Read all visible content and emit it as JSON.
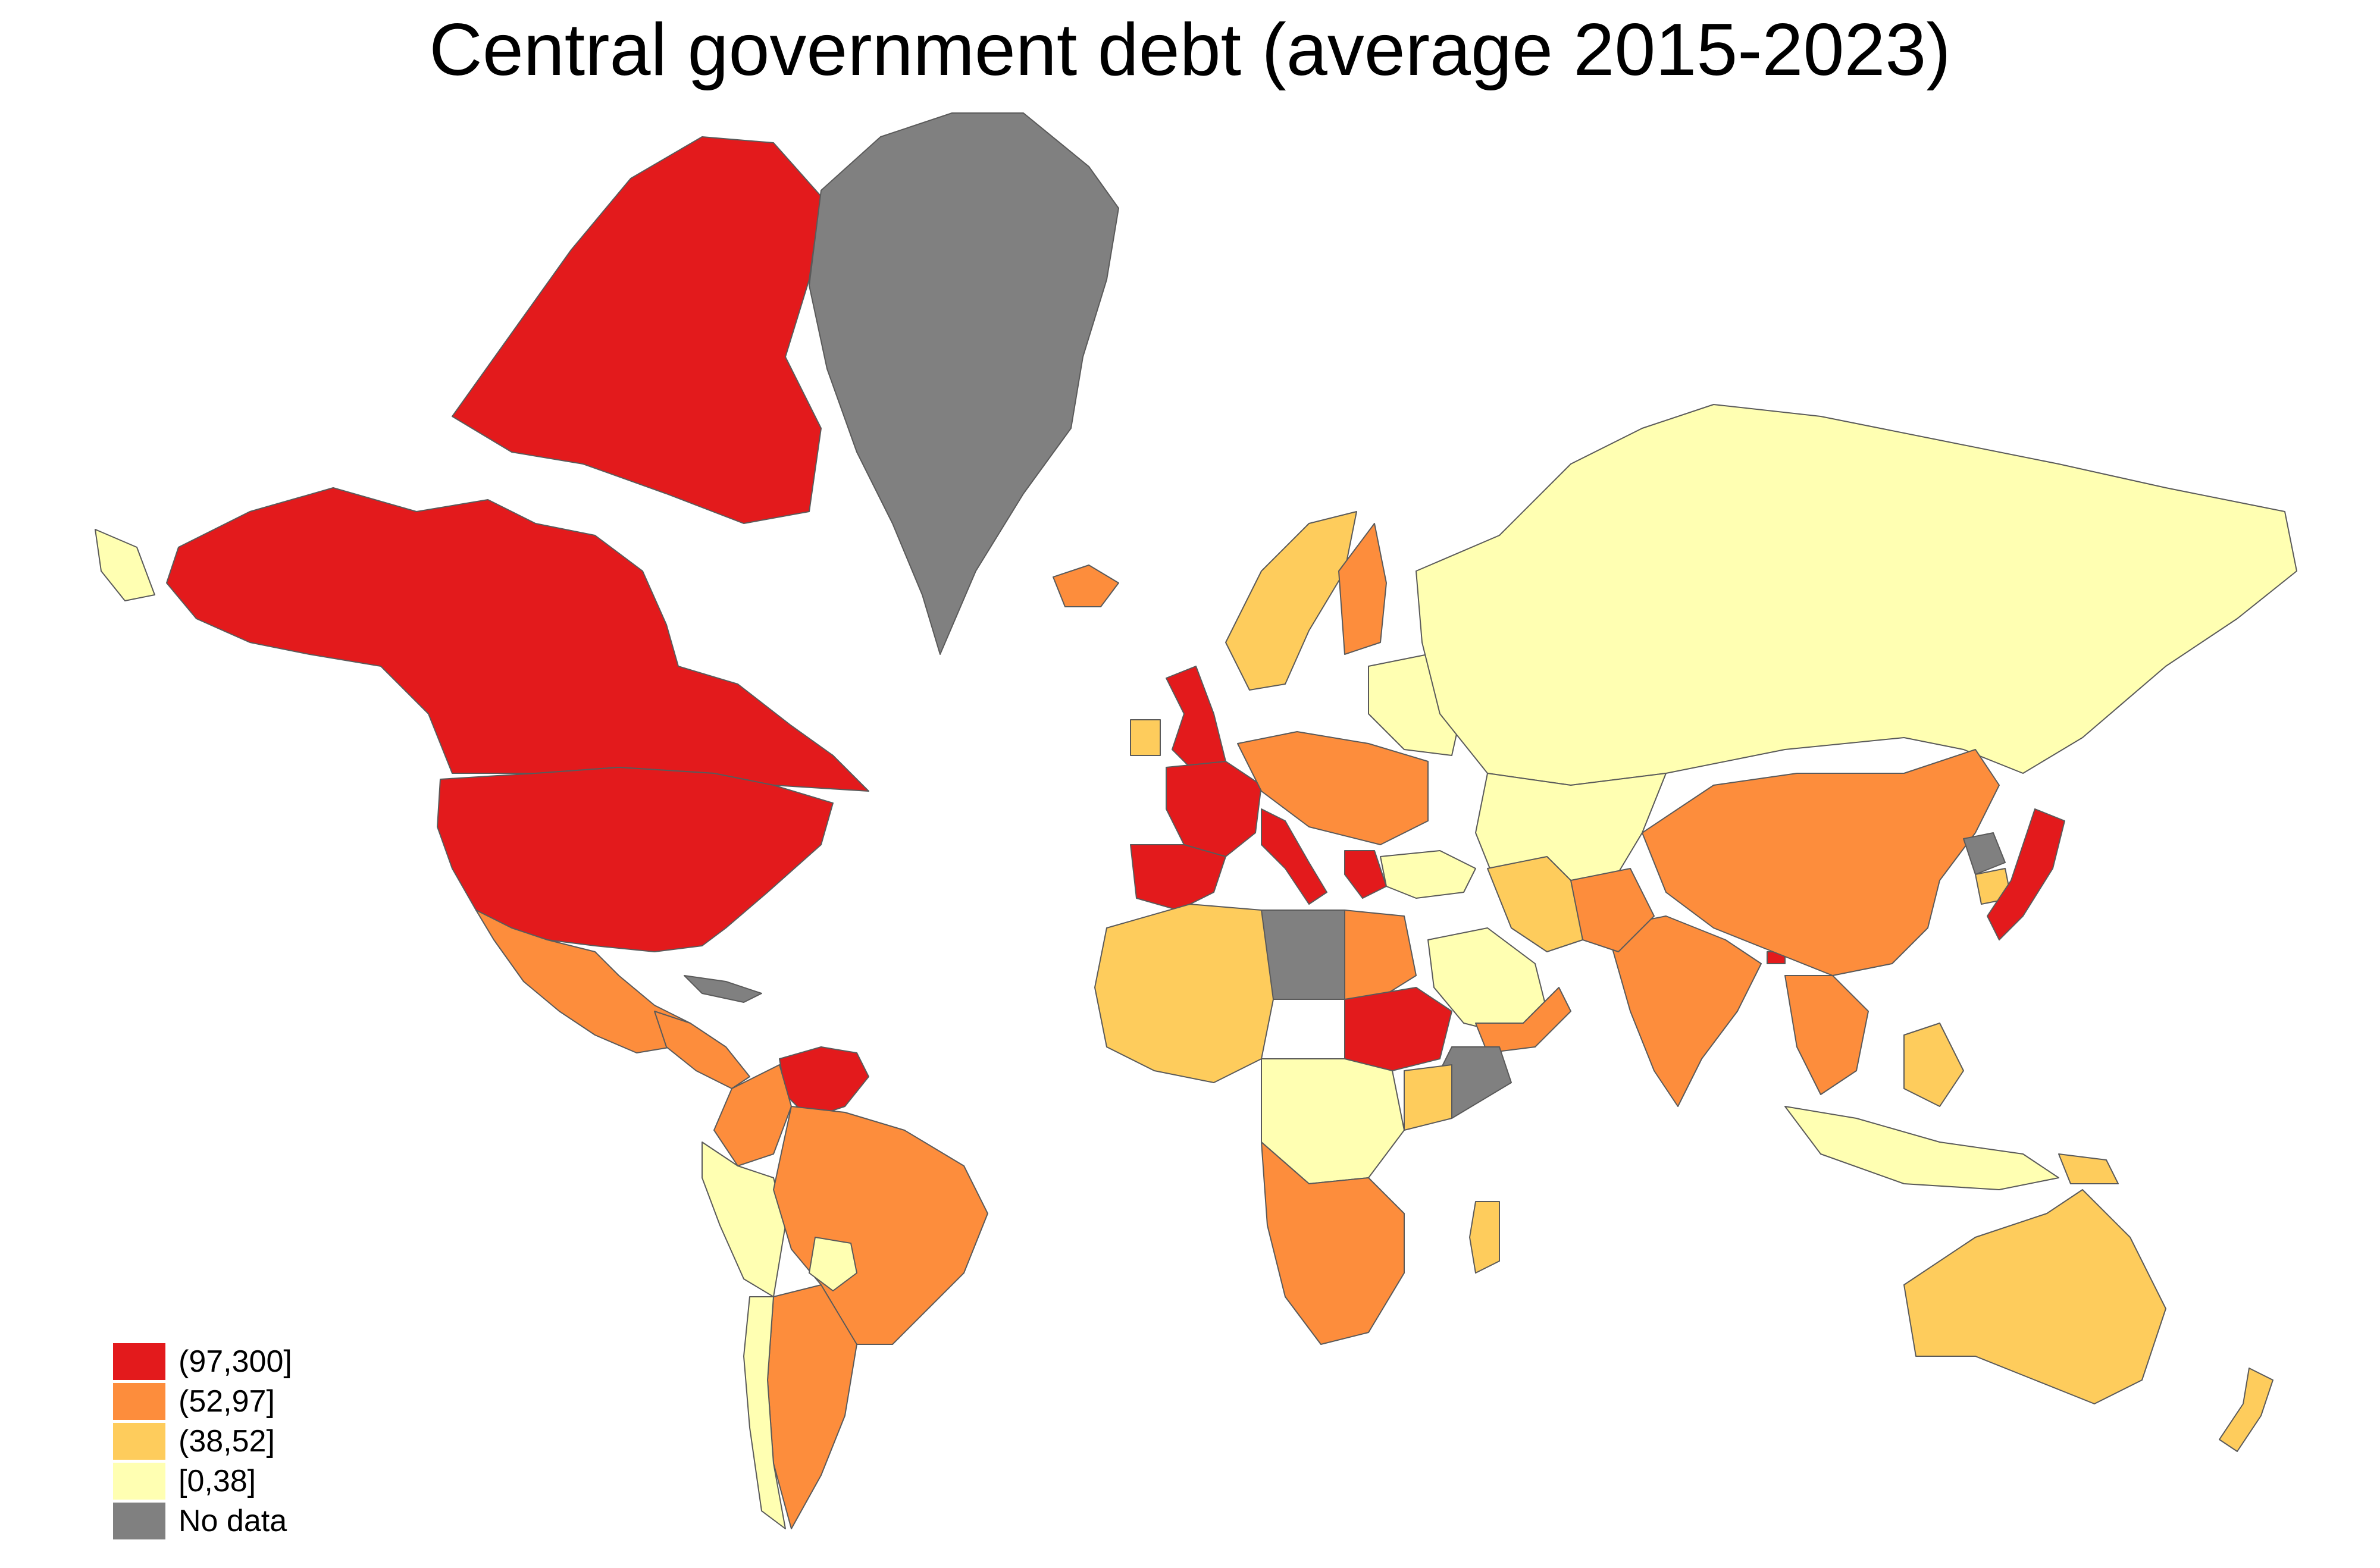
{
  "title": "Central government debt (average 2015-2023)",
  "legend": {
    "items": [
      {
        "label": "(97,300]",
        "color": "#e31a1c"
      },
      {
        "label": "(52,97]",
        "color": "#fd8d3c"
      },
      {
        "label": "(38,52]",
        "color": "#fecc5c"
      },
      {
        "label": "[0,38]",
        "color": "#ffffb2"
      },
      {
        "label": "No data",
        "color": "#808080"
      }
    ]
  }
}
